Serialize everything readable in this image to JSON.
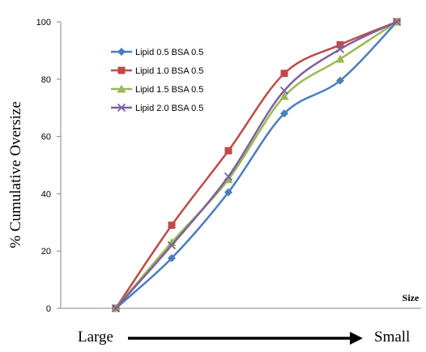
{
  "chart_data": {
    "type": "line",
    "title": "",
    "xlabel": "Size",
    "ylabel": "% Cumulative Oversize",
    "ylim": [
      0,
      100
    ],
    "yticks": [
      0,
      20,
      40,
      60,
      80,
      100
    ],
    "x": [
      1,
      2,
      3,
      4,
      5,
      6
    ],
    "grid": false,
    "legend_position": "top-left",
    "direction": {
      "start_label": "Large",
      "end_label": "Small"
    },
    "series": [
      {
        "name": "Lipid 0.5 BSA 0.5",
        "color": "#4a7ebb",
        "marker": "diamond",
        "values": [
          0,
          17.5,
          40.5,
          68,
          79.5,
          100
        ]
      },
      {
        "name": "Lipid 1.0 BSA 0.5",
        "color": "#be4b48",
        "marker": "square",
        "values": [
          0,
          29,
          55,
          82,
          92,
          100
        ]
      },
      {
        "name": "Lipid 1.5 BSA 0.5",
        "color": "#98b954",
        "marker": "triangle",
        "values": [
          0,
          23,
          45,
          74,
          87,
          100
        ]
      },
      {
        "name": "Lipid 2.0 BSA 0.5",
        "color": "#7d5fa0",
        "marker": "x",
        "values": [
          0,
          22,
          46,
          76,
          90.5,
          100
        ]
      }
    ]
  }
}
